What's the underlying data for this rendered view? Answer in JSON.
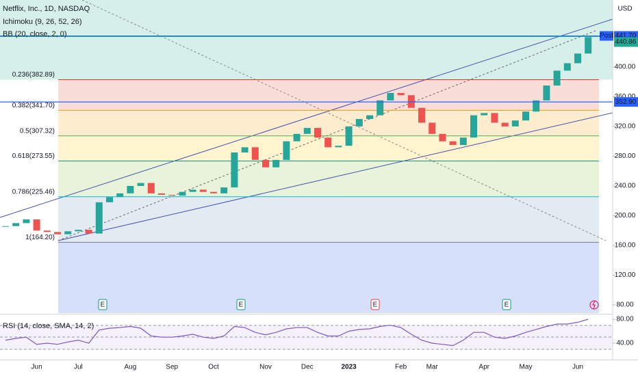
{
  "chart_data": {
    "type": "candlestick",
    "title": "Netflix, Inc., 1D, NASDAQ",
    "indicators": [
      "Ichimoku (9, 26, 52, 26)",
      "BB (20, close, 2, 0)"
    ],
    "currency": "USD",
    "categories": [
      null,
      null,
      null,
      "Jun",
      null,
      null,
      null,
      "Jul",
      null,
      null,
      null,
      null,
      "Aug",
      null,
      null,
      null,
      "Sep",
      null,
      null,
      null,
      "Oct",
      null,
      null,
      null,
      null,
      "Nov",
      null,
      null,
      null,
      "Dec",
      null,
      null,
      null,
      "2023",
      null,
      null,
      null,
      null,
      "Feb",
      null,
      null,
      "Mar",
      null,
      null,
      null,
      null,
      "Apr",
      null,
      null,
      null,
      "May",
      null,
      null,
      null,
      null,
      "Jun",
      null
    ],
    "close": [
      186,
      190,
      195,
      180,
      178,
      175,
      179,
      181,
      176,
      218,
      225,
      230,
      240,
      244,
      230,
      228,
      227,
      232,
      235,
      232,
      230,
      238,
      285,
      292,
      275,
      265,
      275,
      300,
      310,
      318,
      305,
      292,
      294,
      320,
      330,
      335,
      355,
      365,
      362,
      345,
      325,
      310,
      300,
      295,
      305,
      335,
      338,
      325,
      320,
      328,
      340,
      355,
      375,
      395,
      405,
      418,
      440
    ],
    "up_color": "#26a69a",
    "down_color": "#ef5350",
    "ylim": [
      69,
      490
    ],
    "yticks": [
      {
        "value": 400,
        "label": "400.00"
      },
      {
        "value": 360,
        "label": "360.00"
      },
      {
        "value": 320,
        "label": "320.00"
      },
      {
        "value": 280,
        "label": "280.00"
      },
      {
        "value": 240,
        "label": "240.00"
      },
      {
        "value": 200,
        "label": "200.00"
      },
      {
        "value": 160,
        "label": "160.00"
      },
      {
        "value": 120,
        "label": "120.00"
      },
      {
        "value": 80,
        "label": "80.00"
      }
    ],
    "fib_levels": [
      {
        "value": 382.89,
        "label": "0.236(382.89)",
        "color": "#e53935"
      },
      {
        "value": 341.7,
        "label": "0.382(341.70)",
        "color": "#ff9800"
      },
      {
        "value": 307.32,
        "label": "0.5(307.32)",
        "color": "#4caf50"
      },
      {
        "value": 273.55,
        "label": "0.618(273.55)",
        "color": "#089981"
      },
      {
        "value": 225.46,
        "label": "0.786(225.46)",
        "color": "#00bcd4"
      },
      {
        "value": 164.2,
        "label": "1(164.20)",
        "color": "#787b86"
      }
    ],
    "post_badge": {
      "tag": "Post",
      "value": 441.7,
      "label": "441.70",
      "color": "#2962ff"
    },
    "last_badge": {
      "value": 440.86,
      "label": "440.86",
      "color": "#22ab94"
    },
    "line_badge": {
      "value": 352.9,
      "label": "352.90",
      "color": "#2962ff"
    },
    "events": [
      {
        "label": "E",
        "color": "#089981"
      },
      {
        "label": "E",
        "color": "#089981"
      },
      {
        "label": "E",
        "color": "#f23645"
      },
      {
        "label": "E",
        "color": "#089981"
      }
    ],
    "rsi": {
      "title": "RSI (14, close, SMA, 14, 2)",
      "values": [
        45,
        48,
        50,
        38,
        40,
        38,
        42,
        45,
        40,
        62,
        65,
        66,
        68,
        65,
        52,
        50,
        50,
        52,
        55,
        50,
        48,
        52,
        68,
        66,
        58,
        54,
        58,
        64,
        66,
        66,
        58,
        52,
        52,
        60,
        63,
        64,
        68,
        70,
        66,
        55,
        45,
        40,
        38,
        36,
        45,
        58,
        58,
        50,
        48,
        52,
        58,
        63,
        68,
        72,
        72,
        75,
        80
      ],
      "color": "#7e57c2",
      "ylim": [
        13.7,
        85.7
      ],
      "yticks": [
        {
          "value": 80,
          "label": "80.00"
        },
        {
          "value": 40,
          "label": "40.00"
        }
      ]
    }
  }
}
